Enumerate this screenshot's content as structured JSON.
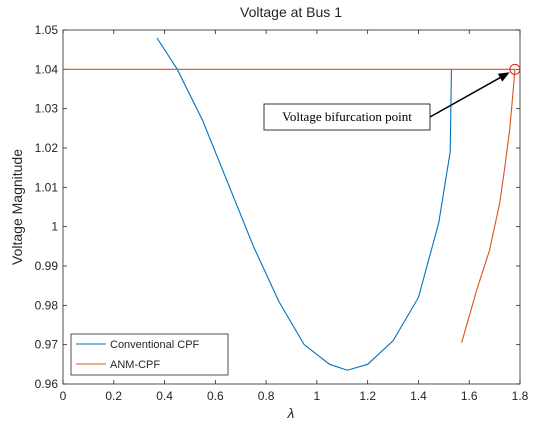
{
  "chart_data": {
    "type": "line",
    "title": "Voltage at Bus 1",
    "xlabel": "λ",
    "ylabel": "Voltage Magnitude",
    "xlim": [
      0,
      1.8
    ],
    "ylim": [
      0.96,
      1.05
    ],
    "xticks": [
      0,
      0.2,
      0.4,
      0.6,
      0.8,
      1,
      1.2,
      1.4,
      1.6,
      1.8
    ],
    "xtick_labels": [
      "0",
      "0.2",
      "0.4",
      "0.6",
      "0.8",
      "1",
      "1.2",
      "1.4",
      "1.6",
      "1.8"
    ],
    "yticks": [
      0.96,
      0.97,
      0.98,
      0.99,
      1.0,
      1.01,
      1.02,
      1.03,
      1.04,
      1.05
    ],
    "ytick_labels": [
      "0.96",
      "0.97",
      "0.98",
      "0.99",
      "1",
      "1.01",
      "1.02",
      "1.03",
      "1.04",
      "1.05"
    ],
    "grid": false,
    "legend_position": "bottom-left",
    "series": [
      {
        "name": "Conventional CPF",
        "color": "#0072BD",
        "points": [
          [
            0.37,
            1.048
          ],
          [
            0.45,
            1.04
          ],
          [
            0.55,
            1.027
          ],
          [
            0.65,
            1.011
          ],
          [
            0.75,
            0.995
          ],
          [
            0.85,
            0.981
          ],
          [
            0.95,
            0.97
          ],
          [
            1.05,
            0.965
          ],
          [
            1.12,
            0.9635
          ],
          [
            1.2,
            0.965
          ],
          [
            1.3,
            0.971
          ],
          [
            1.4,
            0.982
          ],
          [
            1.48,
            1.001
          ],
          [
            1.525,
            1.019
          ],
          [
            1.53,
            1.04
          ]
        ]
      },
      {
        "name": "ANM-CPF",
        "color": "#D95319",
        "points": [
          [
            0.0,
            1.04
          ],
          [
            1.78,
            1.04
          ],
          [
            1.775,
            1.036
          ],
          [
            1.76,
            1.025
          ],
          [
            1.74,
            1.015
          ],
          [
            1.72,
            1.006
          ],
          [
            1.68,
            0.994
          ],
          [
            1.63,
            0.984
          ],
          [
            1.57,
            0.9705
          ]
        ]
      }
    ],
    "annotations": [
      {
        "text": "Voltage bifurcation point",
        "target": [
          1.78,
          1.04
        ],
        "marker": "circle"
      }
    ]
  }
}
